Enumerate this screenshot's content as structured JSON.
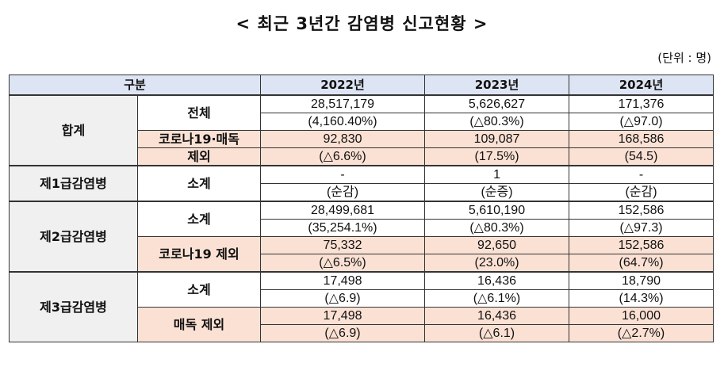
{
  "title": "< 최근 3년간 감염병 신고현황 >",
  "unit": "(단위 : 명)",
  "header": {
    "category": "구분",
    "years": [
      "2022년",
      "2023년",
      "2024년"
    ]
  },
  "groups": {
    "total": {
      "name": "합계",
      "rows": [
        {
          "label": "전체",
          "values": [
            "28,517,179",
            "5,626,627",
            "171,376"
          ],
          "changes": [
            "(4,160.40%)",
            "(△80.3%)",
            "(△97.0)"
          ]
        },
        {
          "label_line1": "코로나19·매독",
          "label_line2": "제외",
          "values": [
            "92,830",
            "109,087",
            "168,586"
          ],
          "changes": [
            "(△6.6%)",
            "(17.5%)",
            "(54.5)"
          ]
        }
      ]
    },
    "class1": {
      "name": "제1급감염병",
      "rows": [
        {
          "label": "소계",
          "values": [
            "-",
            "1",
            "-"
          ],
          "changes": [
            "(순감)",
            "(순증)",
            "(순감)"
          ]
        }
      ]
    },
    "class2": {
      "name": "제2급감염병",
      "rows": [
        {
          "label": "소계",
          "values": [
            "28,499,681",
            "5,610,190",
            "152,586"
          ],
          "changes": [
            "(35,254.1%)",
            "(△80.3%)",
            "(△97.3)"
          ]
        },
        {
          "label": "코로나19 제외",
          "values": [
            "75,332",
            "92,650",
            "152,586"
          ],
          "changes": [
            "(△6.5%)",
            "(23.0%)",
            "(64.7%)"
          ]
        }
      ]
    },
    "class3": {
      "name": "제3급감염병",
      "rows": [
        {
          "label": "소계",
          "values": [
            "17,498",
            "16,436",
            "18,790"
          ],
          "changes": [
            "(△6.9)",
            "(△6.1%)",
            "(14.3%)"
          ]
        },
        {
          "label": "매독 제외",
          "values": [
            "17,498",
            "16,436",
            "16,000"
          ],
          "changes": [
            "(△6.9)",
            "(△6.1)",
            "(△2.7%)"
          ]
        }
      ]
    }
  }
}
